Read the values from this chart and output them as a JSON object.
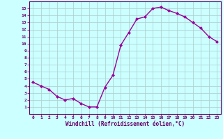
{
  "x": [
    0,
    1,
    2,
    3,
    4,
    5,
    6,
    7,
    8,
    9,
    10,
    11,
    12,
    13,
    14,
    15,
    16,
    17,
    18,
    19,
    20,
    21,
    22,
    23
  ],
  "y": [
    4.5,
    4.0,
    3.5,
    2.5,
    2.0,
    2.2,
    1.5,
    1.0,
    1.0,
    3.8,
    5.5,
    9.8,
    11.6,
    13.5,
    13.8,
    15.0,
    15.2,
    14.7,
    14.3,
    13.8,
    13.0,
    12.2,
    11.0,
    10.3
  ],
  "line_color": "#990099",
  "marker": "D",
  "marker_size": 2.0,
  "bg_color": "#ccffff",
  "grid_color": "#aacccc",
  "xlabel": "Windchill (Refroidissement éolien,°C)",
  "xlabel_color": "#660066",
  "tick_color": "#660066",
  "ylim": [
    0,
    16
  ],
  "xlim": [
    -0.5,
    23.5
  ],
  "yticks": [
    1,
    2,
    3,
    4,
    5,
    6,
    7,
    8,
    9,
    10,
    11,
    12,
    13,
    14,
    15
  ],
  "xticks": [
    0,
    1,
    2,
    3,
    4,
    5,
    6,
    7,
    8,
    9,
    10,
    11,
    12,
    13,
    14,
    15,
    16,
    17,
    18,
    19,
    20,
    21,
    22,
    23
  ],
  "spine_color": "#660066",
  "linewidth": 1.0
}
